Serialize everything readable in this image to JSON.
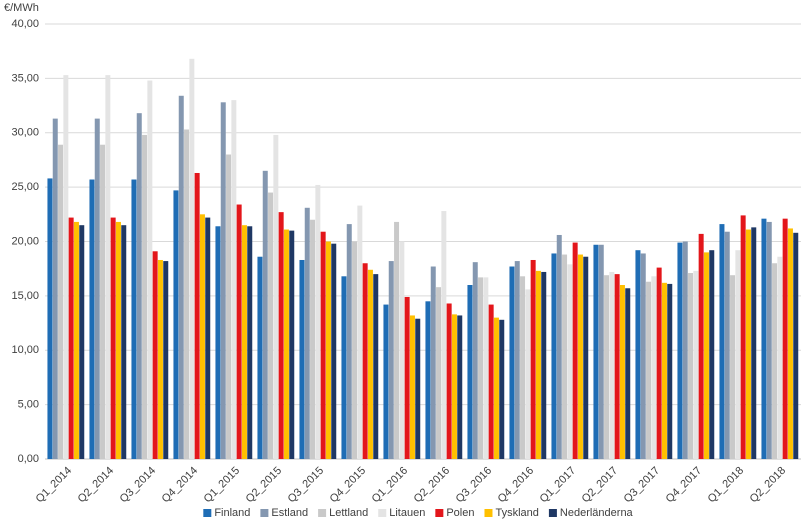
{
  "chart_data": {
    "type": "bar",
    "y_label": "€/MWh",
    "categories": [
      "Q1_2014",
      "Q2_2014",
      "Q3_2014",
      "Q4_2014",
      "Q1_2015",
      "Q2_2015",
      "Q3_2015",
      "Q4_2015",
      "Q1_2016",
      "Q2_2016",
      "Q3_2016",
      "Q4_2016",
      "Q1_2017",
      "Q2_2017",
      "Q3_2017",
      "Q4_2017",
      "Q1_2018",
      "Q2_2018"
    ],
    "series": [
      {
        "name": "Finland",
        "color": "#1f6db5",
        "values": [
          25.8,
          25.7,
          25.7,
          24.7,
          21.4,
          18.6,
          18.3,
          16.8,
          14.2,
          14.5,
          16.0,
          17.7,
          18.9,
          19.7,
          19.2,
          19.9,
          21.6,
          22.1
        ]
      },
      {
        "name": "Estland",
        "color": "#8497b0",
        "values": [
          31.3,
          31.3,
          31.8,
          33.4,
          32.8,
          26.5,
          23.1,
          21.6,
          18.2,
          17.7,
          18.1,
          18.2,
          20.6,
          19.7,
          18.9,
          20.0,
          20.9,
          21.8
        ]
      },
      {
        "name": "Lettland",
        "color": "#c9c9c9",
        "values": [
          28.9,
          28.9,
          29.8,
          30.3,
          28.0,
          24.5,
          22.0,
          20.0,
          21.8,
          15.8,
          16.7,
          16.8,
          18.8,
          16.9,
          16.3,
          17.1,
          16.9,
          18.0
        ]
      },
      {
        "name": "Litauen",
        "color": "#e4e4e4",
        "values": [
          35.3,
          35.3,
          34.8,
          36.8,
          33.0,
          29.8,
          25.2,
          23.3,
          20.0,
          22.8,
          16.7,
          15.6,
          17.9,
          17.2,
          16.8,
          17.3,
          19.2,
          18.6
        ]
      },
      {
        "name": "Polen",
        "color": "#e3161b",
        "values": [
          22.2,
          22.2,
          19.1,
          26.3,
          23.4,
          22.7,
          20.9,
          18.0,
          14.9,
          14.3,
          14.2,
          18.3,
          19.9,
          17.0,
          17.6,
          20.7,
          22.4,
          22.1
        ]
      },
      {
        "name": "Tyskland",
        "color": "#ffc000",
        "values": [
          21.8,
          21.8,
          18.3,
          22.5,
          21.5,
          21.1,
          20.0,
          17.4,
          13.2,
          13.3,
          13.0,
          17.3,
          18.8,
          16.0,
          16.2,
          19.0,
          21.1,
          21.2
        ]
      },
      {
        "name": "Nederländerna",
        "color": "#1f3864",
        "values": [
          21.5,
          21.5,
          18.2,
          22.2,
          21.4,
          21.0,
          19.8,
          17.0,
          12.9,
          13.2,
          12.8,
          17.2,
          18.6,
          15.7,
          16.1,
          19.2,
          21.3,
          20.8
        ]
      }
    ],
    "ylim": [
      0,
      40
    ],
    "yticks": [
      {
        "value": 0,
        "label": "0,00"
      },
      {
        "value": 5,
        "label": "5,00"
      },
      {
        "value": 10,
        "label": "10,00"
      },
      {
        "value": 15,
        "label": "15,00"
      },
      {
        "value": 20,
        "label": "20,00"
      },
      {
        "value": 25,
        "label": "25,00"
      },
      {
        "value": 30,
        "label": "30,00"
      },
      {
        "value": 35,
        "label": "35,00"
      },
      {
        "value": 40,
        "label": "40,00"
      }
    ],
    "grid": true,
    "legend": "bottom"
  }
}
